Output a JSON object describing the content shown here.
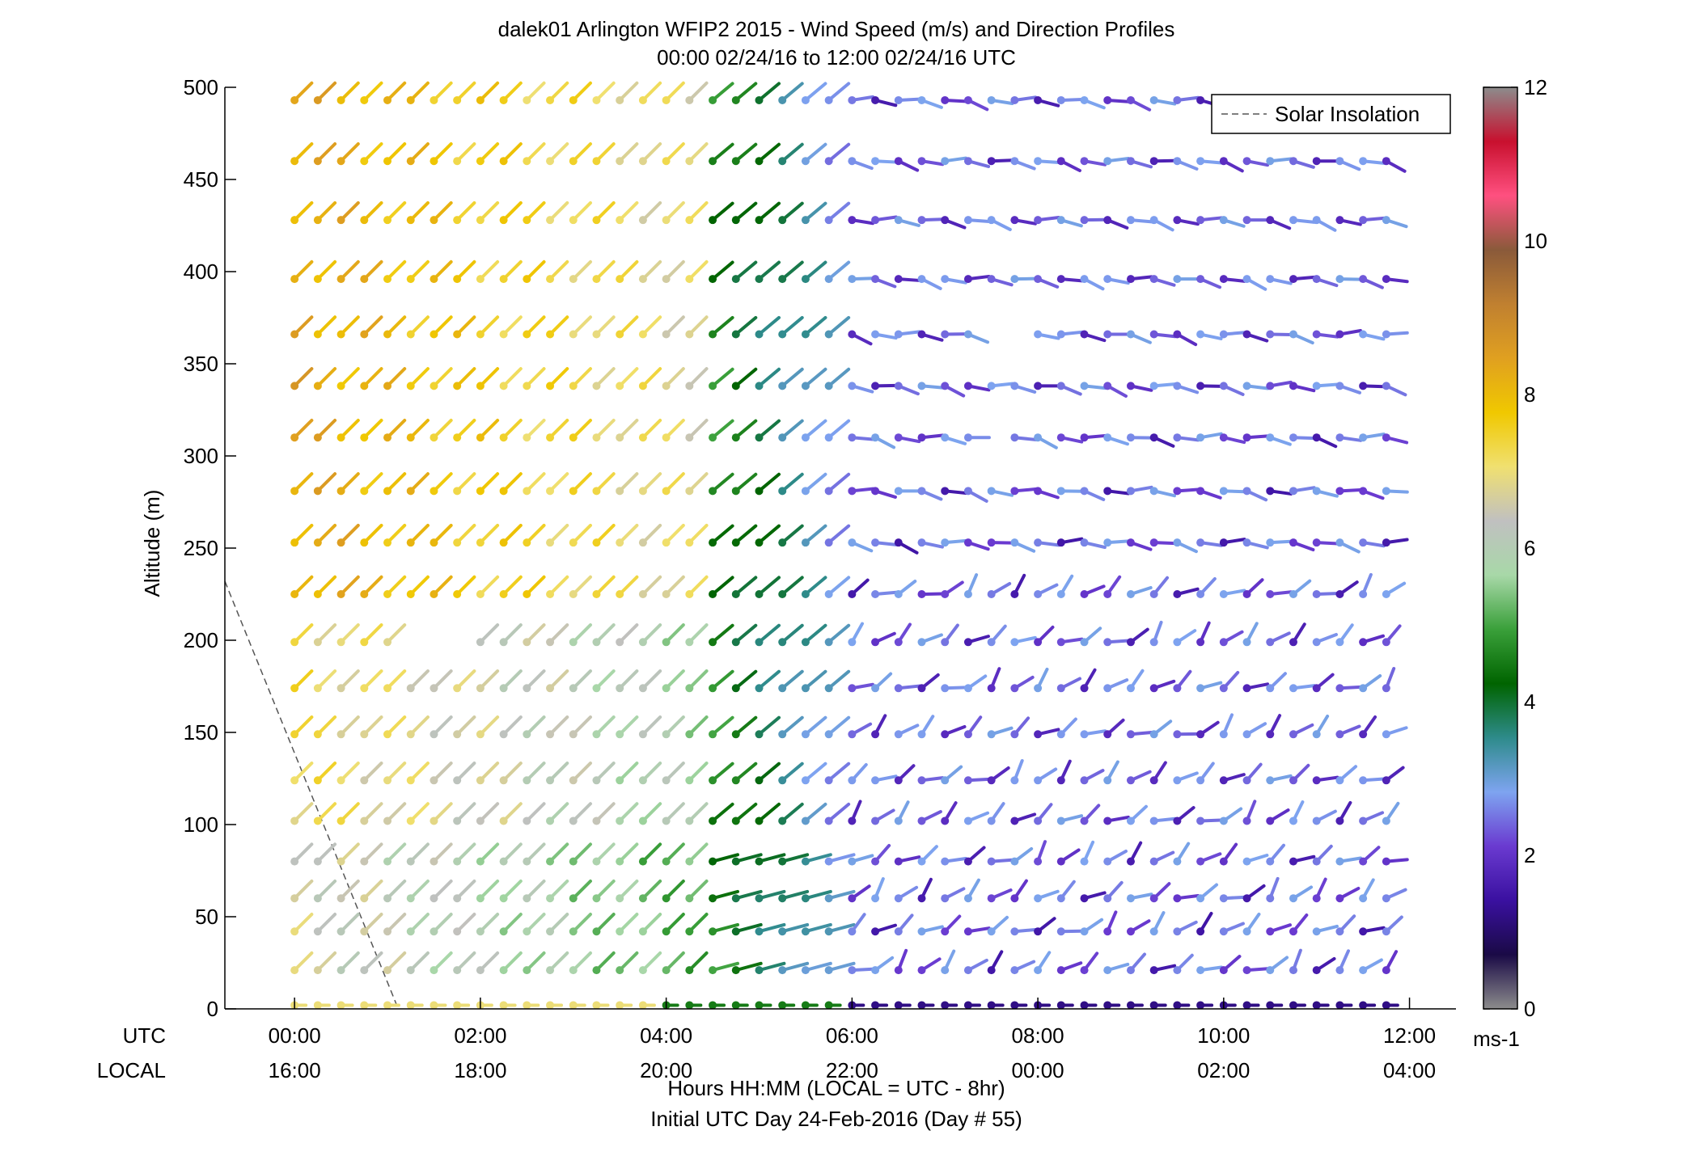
{
  "chart_data": {
    "type": "wind-barb-profile",
    "title": "dalek01 Arlington WFIP2 2015 - Wind Speed (m/s) and Direction Profiles",
    "subtitle": "00:00 02/24/16 to 12:00 02/24/16  UTC",
    "ylabel": "Altitude (m)",
    "xlabel": "Hours HH:MM  (LOCAL = UTC - 8hr)",
    "xlabel2": "Initial UTC Day 24-Feb-2016 (Day # 55)",
    "row_labels": {
      "utc": "UTC",
      "local": "LOCAL"
    },
    "ylim": [
      0,
      500
    ],
    "xlim_hours": [
      -0.75,
      12.5
    ],
    "y_ticks": [
      "0",
      "50",
      "100",
      "150",
      "200",
      "250",
      "300",
      "350",
      "400",
      "450",
      "500"
    ],
    "x_ticks_utc": [
      "00:00",
      "02:00",
      "04:00",
      "06:00",
      "08:00",
      "10:00",
      "12:00"
    ],
    "x_ticks_local": [
      "16:00",
      "18:00",
      "20:00",
      "22:00",
      "00:00",
      "02:00",
      "04:00"
    ],
    "legend": {
      "entries": [
        "Solar Insolation"
      ],
      "placement": "top-right"
    },
    "colorbar": {
      "label": "ms-1",
      "ticks": [
        "0",
        "2",
        "4",
        "6",
        "8",
        "10",
        "12"
      ],
      "range": [
        0,
        12
      ],
      "stops": [
        "#8c8c8c",
        "#1a0a46",
        "#3a10a0",
        "#6a3ad0",
        "#7ea4f0",
        "#2e8b8b",
        "#006400",
        "#3aa03a",
        "#a8d8a8",
        "#c0c0c0",
        "#f0e070",
        "#f0c800",
        "#e0a020",
        "#c08030",
        "#8a5a3a",
        "#ff5080",
        "#c8102e",
        "#8c8c8c"
      ]
    },
    "solar_insolation_line": {
      "hours": [
        -0.75,
        1.1
      ],
      "altitude_m": [
        232,
        2
      ]
    },
    "altitudes_m": [
      2,
      21,
      42,
      60,
      80,
      102,
      124,
      149,
      174,
      199,
      225,
      253,
      281,
      310,
      338,
      366,
      396,
      428,
      460,
      493
    ],
    "time_step_hours": 0.25,
    "time_start_hours": 0,
    "profiles_summary": [
      {
        "hours": [
          0,
          4.5
        ],
        "speed_ms": "6-8.5",
        "direction_deg": 225
      },
      {
        "hours": [
          4.5,
          6
        ],
        "speed_ms": "3-6",
        "direction_deg": 230
      },
      {
        "hours": [
          6,
          12
        ],
        "speed_ms": "1-3",
        "direction": "variable (N to W below 250 m, W above)"
      }
    ]
  }
}
